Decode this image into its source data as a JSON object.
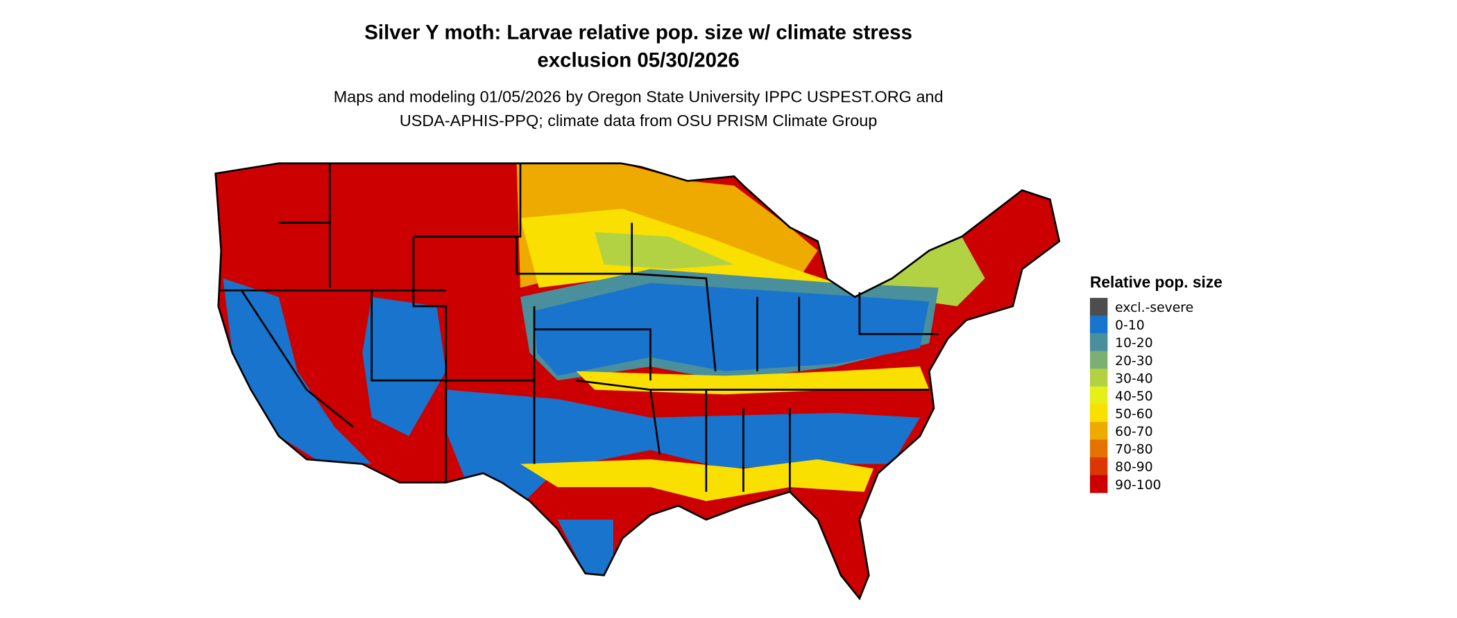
{
  "title": {
    "line1": "Silver Y moth: Larvae relative pop. size w/ climate stress",
    "line2": "exclusion 05/30/2026"
  },
  "subtitle": {
    "line1": "Maps and modeling 01/05/2026 by Oregon State University IPPC USPEST.ORG and",
    "line2": "USDA-APHIS-PPQ; climate data from OSU PRISM Climate Group"
  },
  "map": {
    "region": "Contiguous United States",
    "state_borders": true
  },
  "legend": {
    "title": "Relative pop. size",
    "items": [
      {
        "label": "excl.-severe",
        "color": "#4d4d4d"
      },
      {
        "label": "0-10",
        "color": "#1874cd"
      },
      {
        "label": "10-20",
        "color": "#4a8f9c"
      },
      {
        "label": "20-30",
        "color": "#7cb073"
      },
      {
        "label": "30-40",
        "color": "#b2d244"
      },
      {
        "label": "40-50",
        "color": "#e5f016"
      },
      {
        "label": "50-60",
        "color": "#f9e000"
      },
      {
        "label": "60-70",
        "color": "#efaa00"
      },
      {
        "label": "70-80",
        "color": "#e47200"
      },
      {
        "label": "80-90",
        "color": "#da3800"
      },
      {
        "label": "90-100",
        "color": "#cc0000"
      }
    ]
  }
}
